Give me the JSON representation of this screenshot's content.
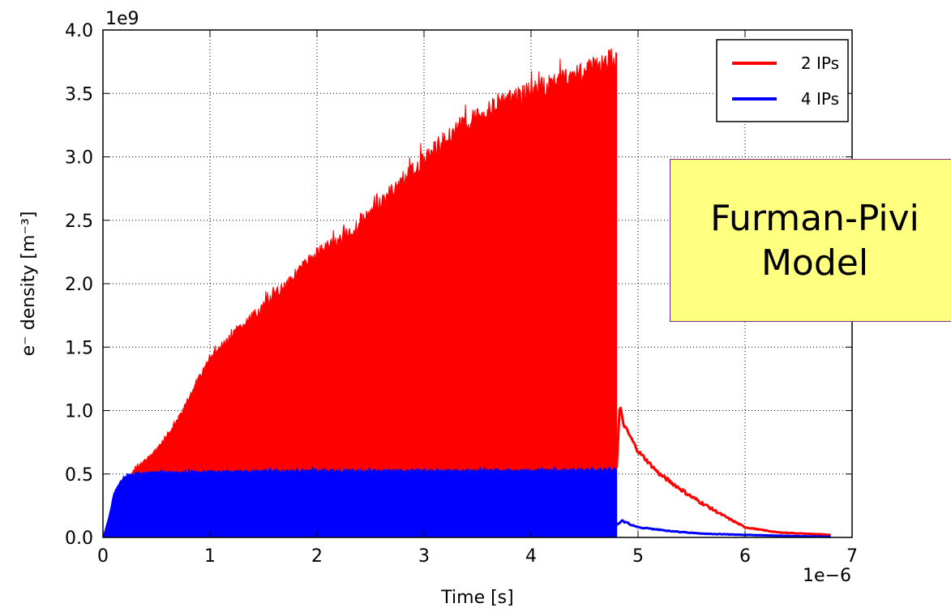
{
  "chart_data": {
    "type": "line",
    "title": "",
    "xlabel": "Time [s]",
    "ylabel": "e⁻ density [m⁻³]",
    "x_offset_label": "1e−6",
    "y_offset_label": "1e9",
    "xlim": [
      0,
      7
    ],
    "ylim": [
      0,
      4.0
    ],
    "grid": true,
    "legend_position": "top-right",
    "x_ticks": [
      "0",
      "1",
      "2",
      "3",
      "4",
      "5",
      "6",
      "7"
    ],
    "y_ticks": [
      "0.0",
      "0.5",
      "1.0",
      "1.5",
      "2.0",
      "2.5",
      "3.0",
      "3.5",
      "4.0"
    ],
    "series": [
      {
        "name": "2 IPs",
        "color": "#ff0000",
        "envelope_max": {
          "x": [
            0.0,
            0.1,
            0.2,
            0.3,
            0.5,
            0.7,
            1.0,
            1.3,
            1.6,
            2.0,
            2.3,
            2.6,
            3.0,
            3.3,
            3.6,
            4.0,
            4.3,
            4.6,
            4.8
          ],
          "y": [
            0.0,
            0.3,
            0.45,
            0.55,
            0.7,
            0.95,
            1.45,
            1.7,
            1.95,
            2.3,
            2.45,
            2.7,
            3.05,
            3.3,
            3.45,
            3.6,
            3.7,
            3.8,
            3.88
          ]
        },
        "decay": {
          "x": [
            4.8,
            4.83,
            4.86,
            5.0,
            5.2,
            5.5,
            5.8,
            6.0,
            6.3,
            6.8
          ],
          "y": [
            0.55,
            1.05,
            0.9,
            0.68,
            0.5,
            0.32,
            0.17,
            0.08,
            0.04,
            0.02
          ]
        }
      },
      {
        "name": "4 IPs",
        "color": "#0000ff",
        "envelope_max": {
          "x": [
            0.0,
            0.05,
            0.1,
            0.15,
            0.2,
            0.3,
            1.0,
            2.0,
            3.0,
            4.0,
            4.8
          ],
          "y": [
            0.0,
            0.15,
            0.35,
            0.44,
            0.48,
            0.52,
            0.53,
            0.54,
            0.54,
            0.54,
            0.55
          ]
        },
        "decay": {
          "x": [
            4.8,
            4.85,
            5.0,
            5.3,
            5.6,
            6.0,
            6.5,
            6.8
          ],
          "y": [
            0.1,
            0.13,
            0.08,
            0.05,
            0.03,
            0.02,
            0.01,
            0.005
          ]
        }
      }
    ]
  },
  "annotation": {
    "line1": "Furman-Pivi",
    "line2": "Model"
  }
}
